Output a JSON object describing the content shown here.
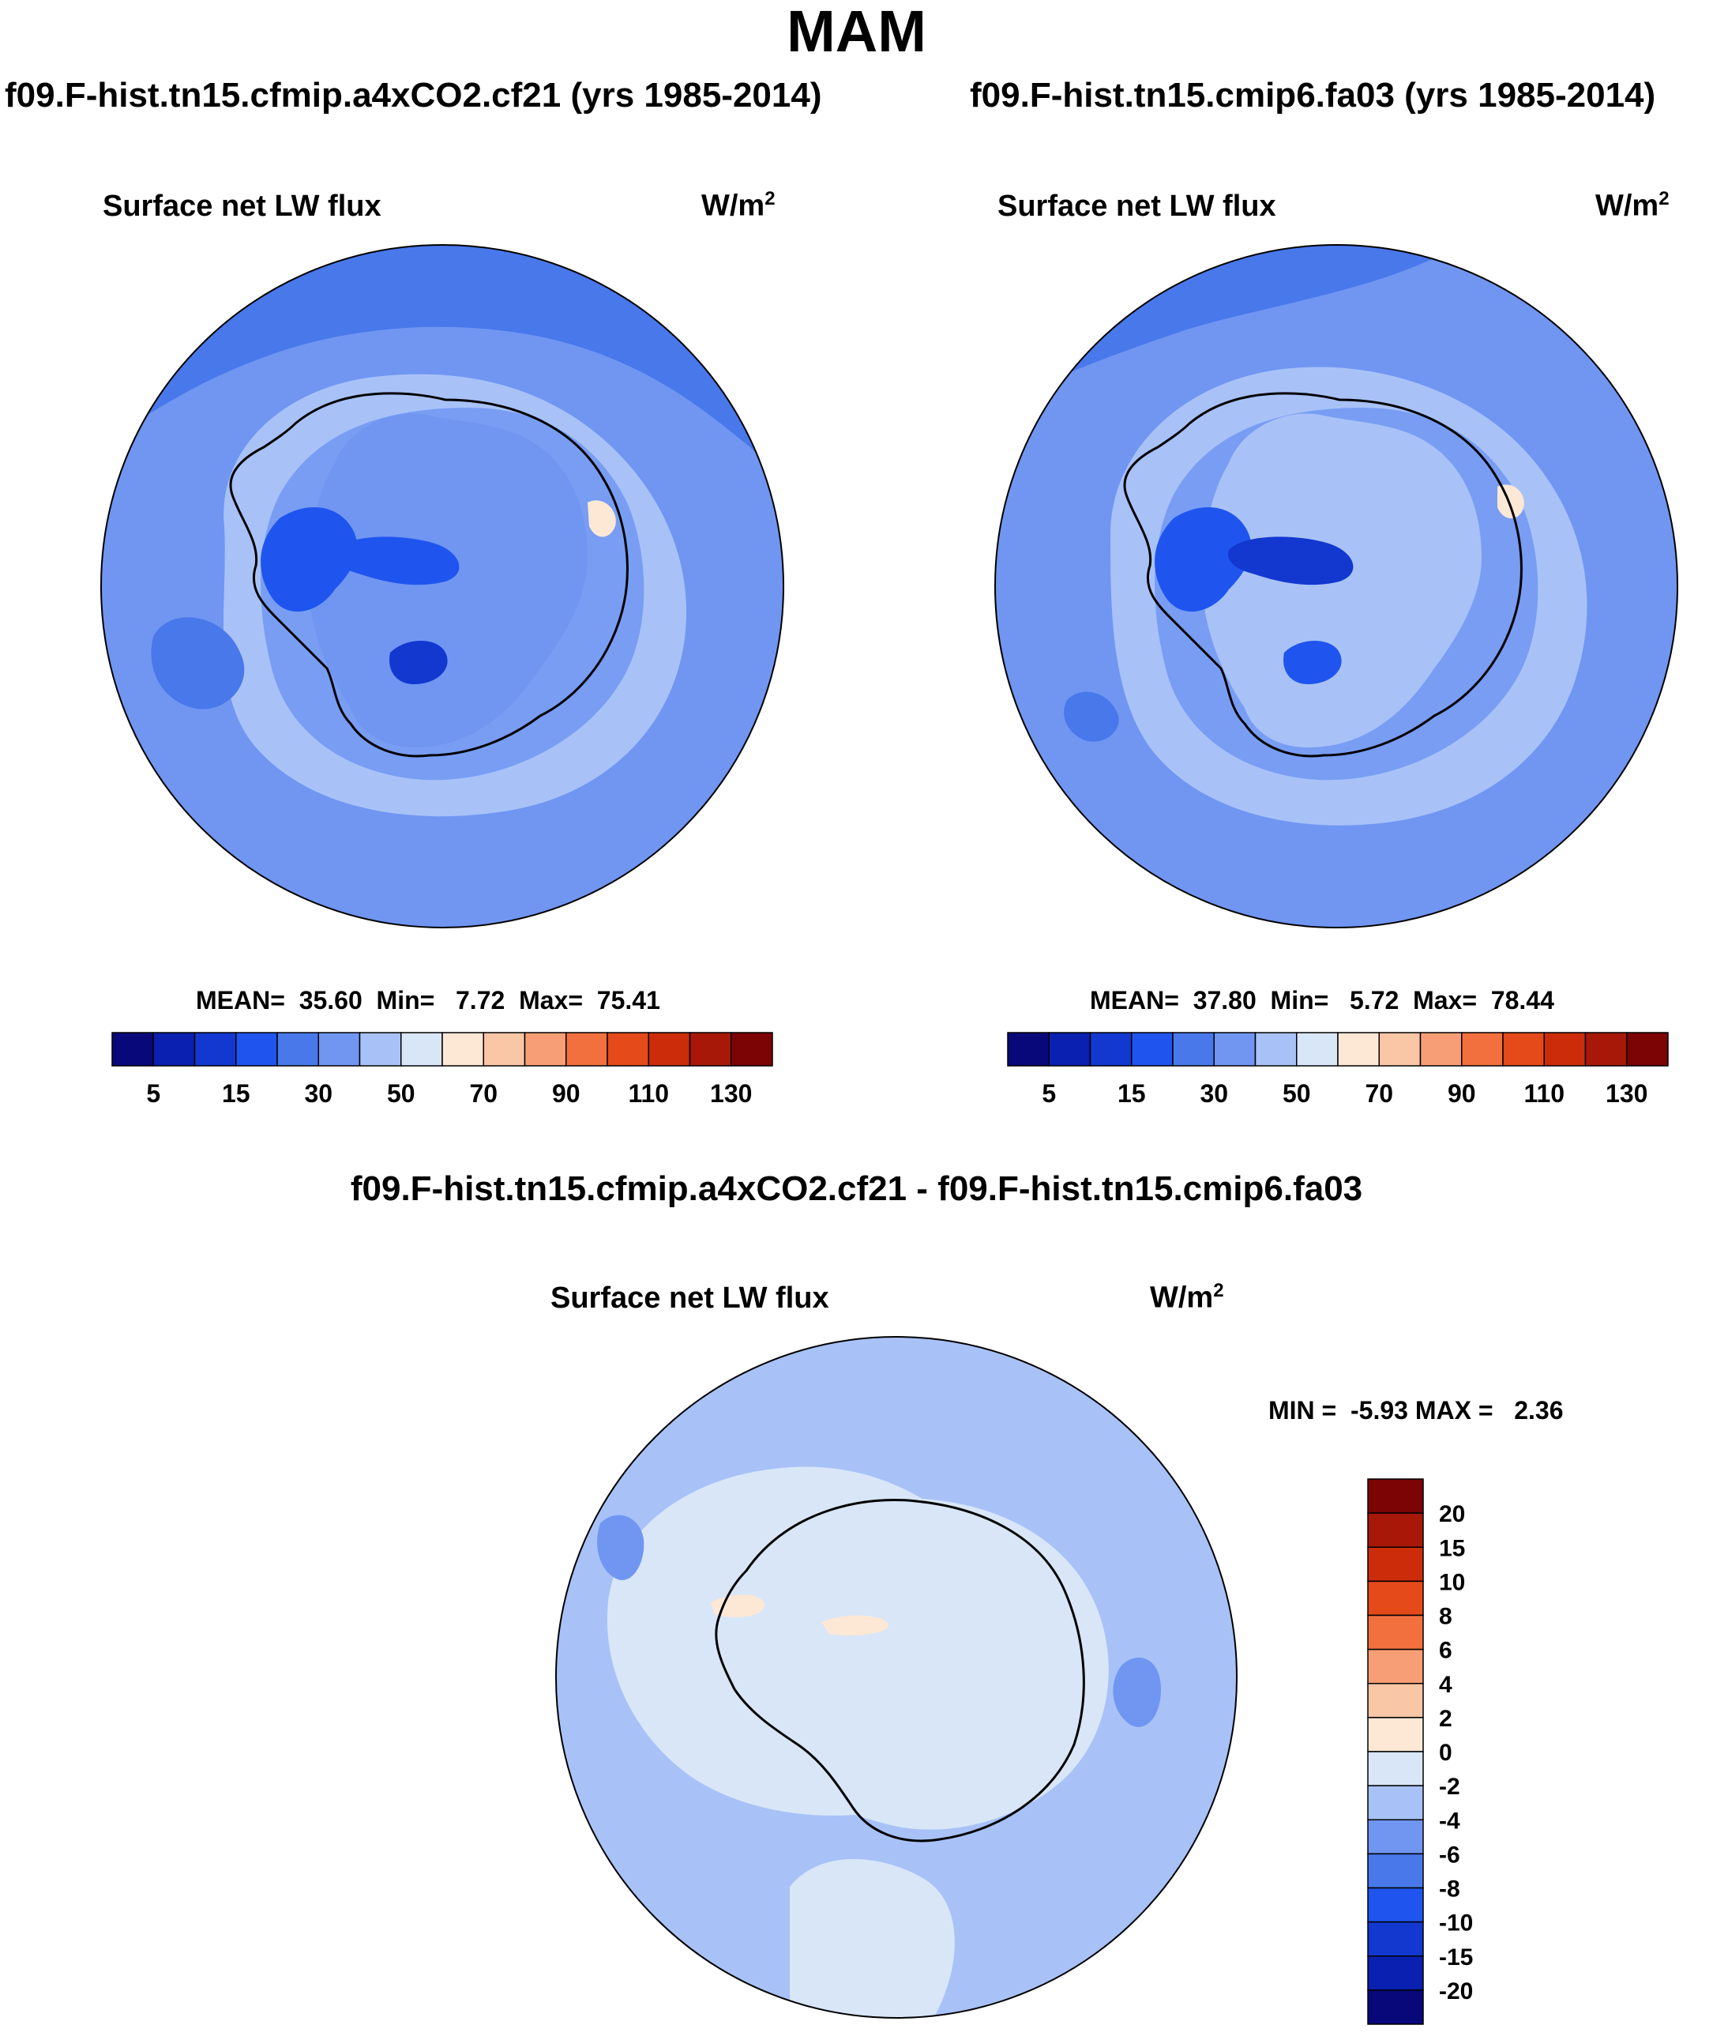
{
  "figure": {
    "title": "MAM"
  },
  "panels": [
    {
      "id": "left",
      "case_title": "f09.F-hist.tn15.cfmip.a4xCO2.cf21 (yrs 1985-2014)",
      "variable": "Surface net LW flux",
      "units_base": "W/m",
      "units_exp": "2",
      "stats_text": "MEAN=  35.60  Min=   7.72  Max=  75.41",
      "mean": 35.6,
      "min": 7.72,
      "max": 75.41
    },
    {
      "id": "right",
      "case_title": "f09.F-hist.tn15.cmip6.fa03 (yrs 1985-2014)",
      "variable": "Surface net LW flux",
      "units_base": "W/m",
      "units_exp": "2",
      "stats_text": "MEAN=  37.80  Min=   5.72  Max=  78.44",
      "mean": 37.8,
      "min": 5.72,
      "max": 78.44
    }
  ],
  "difference": {
    "title": "f09.F-hist.tn15.cfmip.a4xCO2.cf21 - f09.F-hist.tn15.cmip6.fa03",
    "variable": "Surface net LW flux",
    "units_base": "W/m",
    "units_exp": "2",
    "stats_text": "MIN =  -5.93 MAX =   2.36",
    "min": -5.93,
    "max": 2.36
  },
  "colorbar_main": {
    "orientation": "horizontal",
    "colors": [
      "#08087a",
      "#0a20b0",
      "#1238d0",
      "#1f55ee",
      "#4878ea",
      "#7096f2",
      "#a8c2f8",
      "#d8e6f8",
      "#fde8d6",
      "#f9c6a6",
      "#f89e76",
      "#f2703e",
      "#e44a1a",
      "#cc2c0a",
      "#a81808",
      "#7c0404"
    ],
    "tick_labels": [
      "5",
      "15",
      "30",
      "50",
      "70",
      "90",
      "110",
      "130"
    ]
  },
  "colorbar_diff": {
    "orientation": "vertical",
    "colors_top_to_bottom": [
      "#7c0404",
      "#a81808",
      "#cc2c0a",
      "#e44a1a",
      "#f2703e",
      "#f89e76",
      "#f9c6a6",
      "#fde8d6",
      "#d8e6f8",
      "#a8c2f8",
      "#7096f2",
      "#4878ea",
      "#1f55ee",
      "#1238d0",
      "#0a20b0",
      "#08087a"
    ],
    "tick_labels": [
      "20",
      "15",
      "10",
      "8",
      "6",
      "4",
      "2",
      "0",
      "-2",
      "-4",
      "-6",
      "-8",
      "-10",
      "-15",
      "-20"
    ]
  },
  "map_colors": {
    "ocean_far": "#4878ea",
    "mid_band": "#7096f2",
    "light_band": "#a8c2f8",
    "pale": "#d8e6f8",
    "dark_blue": "#1f55ee",
    "deep_blue": "#1238d0",
    "peach": "#fde8d6",
    "coast": "#000000"
  }
}
